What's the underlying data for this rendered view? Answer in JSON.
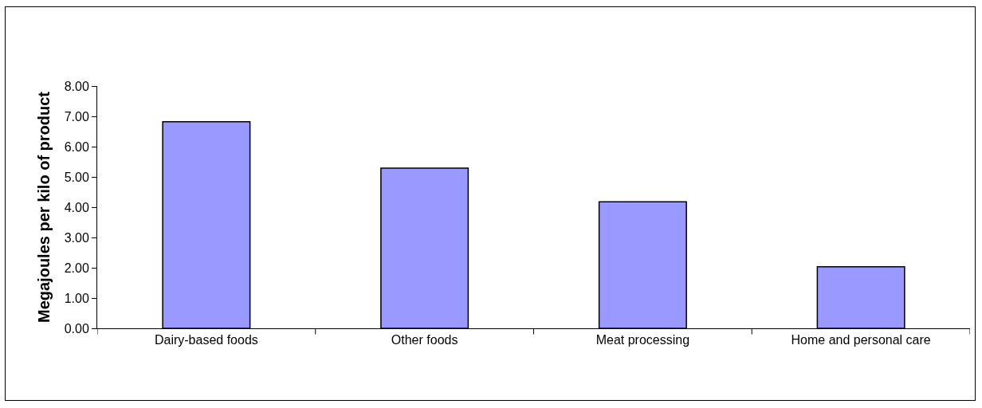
{
  "chart_data": {
    "type": "bar",
    "ylabel": "Megajoules per kilo of product",
    "categories": [
      "Dairy-based foods",
      "Other foods",
      "Meat processing",
      "Home and personal care"
    ],
    "values": [
      6.82,
      5.29,
      4.18,
      2.03
    ],
    "color": "#9999ff",
    "ylim": [
      0,
      8
    ],
    "yticks": [
      {
        "value": 0,
        "label": "0.00"
      },
      {
        "value": 1,
        "label": "1.00"
      },
      {
        "value": 2,
        "label": "2.00"
      },
      {
        "value": 3,
        "label": "3.00"
      },
      {
        "value": 4,
        "label": "4.00"
      },
      {
        "value": 5,
        "label": "5.00"
      },
      {
        "value": 6,
        "label": "6.00"
      },
      {
        "value": 7,
        "label": "7.00"
      },
      {
        "value": 8,
        "label": "8.00"
      }
    ],
    "grid": false
  }
}
